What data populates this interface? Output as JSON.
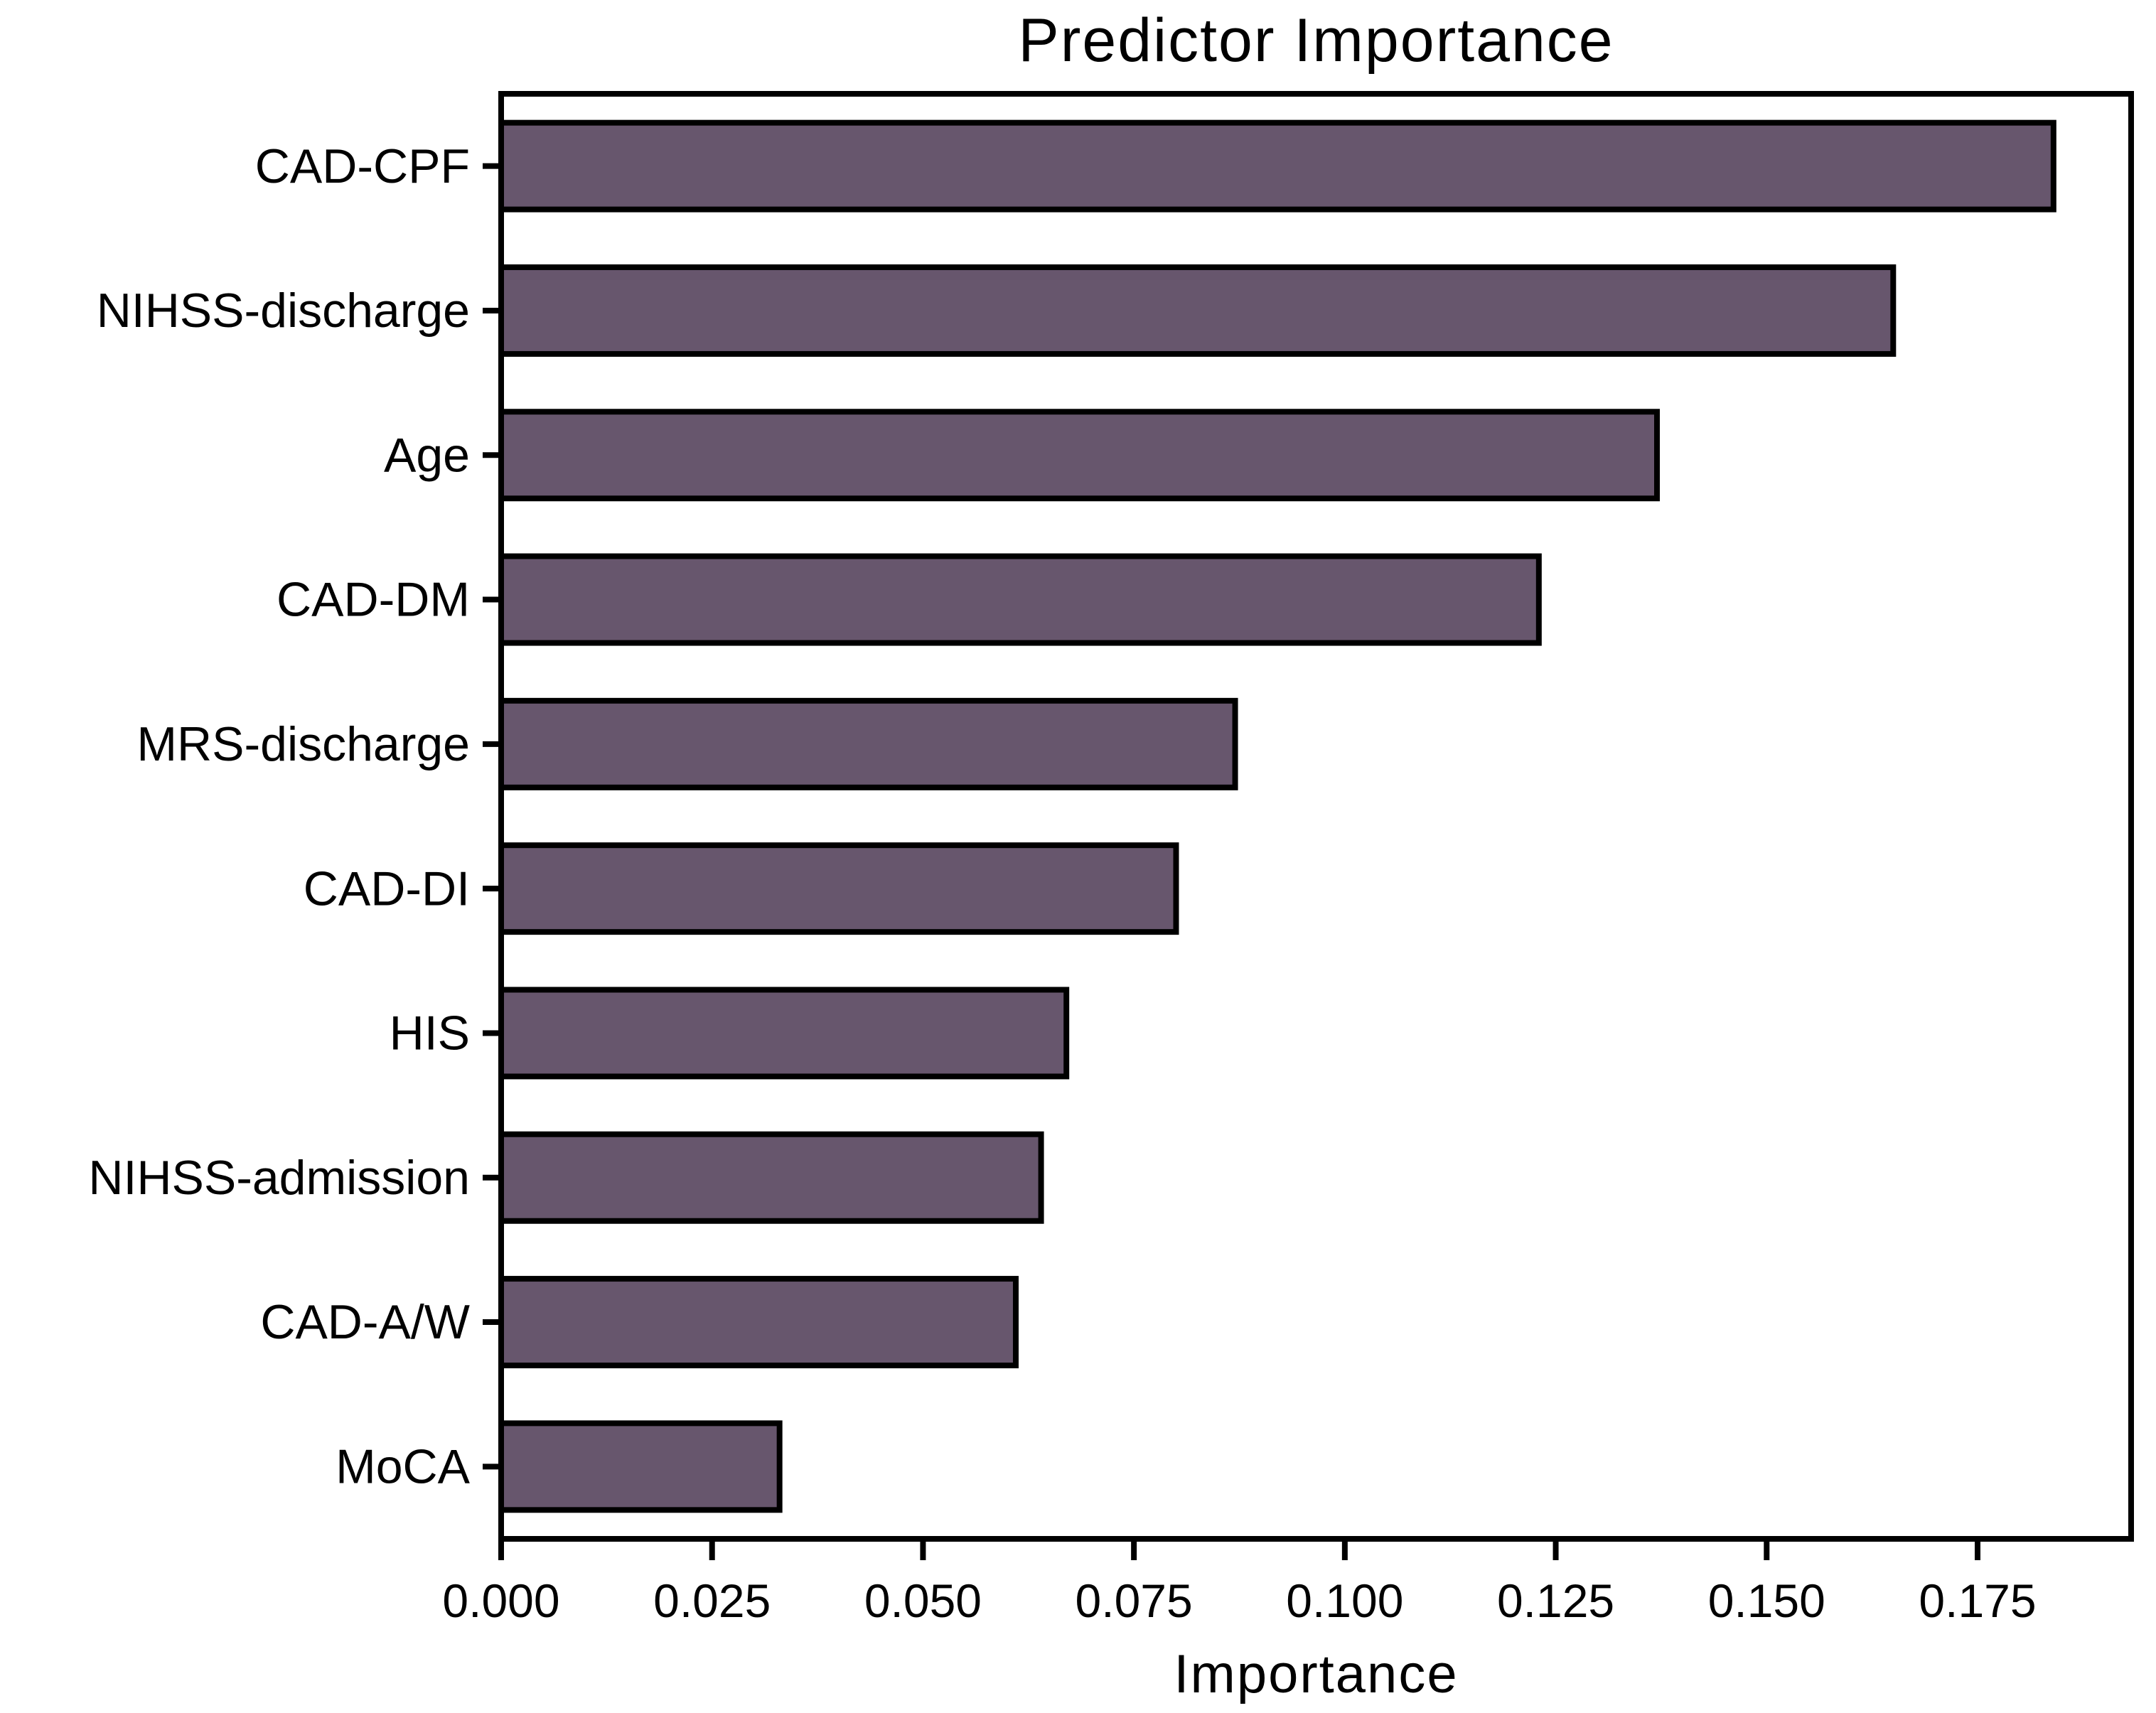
{
  "title": "Predictor Importance",
  "x_axis_label": "Importance",
  "chart_data": {
    "type": "bar",
    "orientation": "horizontal",
    "title": "Predictor Importance",
    "xlabel": "Importance",
    "ylabel": "",
    "categories": [
      "CAD-CPF",
      "NIHSS-discharge",
      "Age",
      "CAD-DM",
      "MRS-discharge",
      "CAD-DI",
      "HIS",
      "NIHSS-admission",
      "CAD-A/W",
      "MoCA"
    ],
    "values": [
      0.184,
      0.165,
      0.137,
      0.123,
      0.087,
      0.08,
      0.067,
      0.064,
      0.061,
      0.033
    ],
    "x_ticks": [
      0.0,
      0.025,
      0.05,
      0.075,
      0.1,
      0.125,
      0.15,
      0.175
    ],
    "x_tick_labels": [
      "0.000",
      "0.025",
      "0.050",
      "0.075",
      "0.100",
      "0.125",
      "0.150",
      "0.175"
    ],
    "xlim": [
      0,
      0.1932
    ],
    "grid": false,
    "legend": null,
    "bar_color": "#67566d",
    "bar_edge_color": "#000000",
    "axis_color": "#000000",
    "background_color": "#ffffff"
  }
}
